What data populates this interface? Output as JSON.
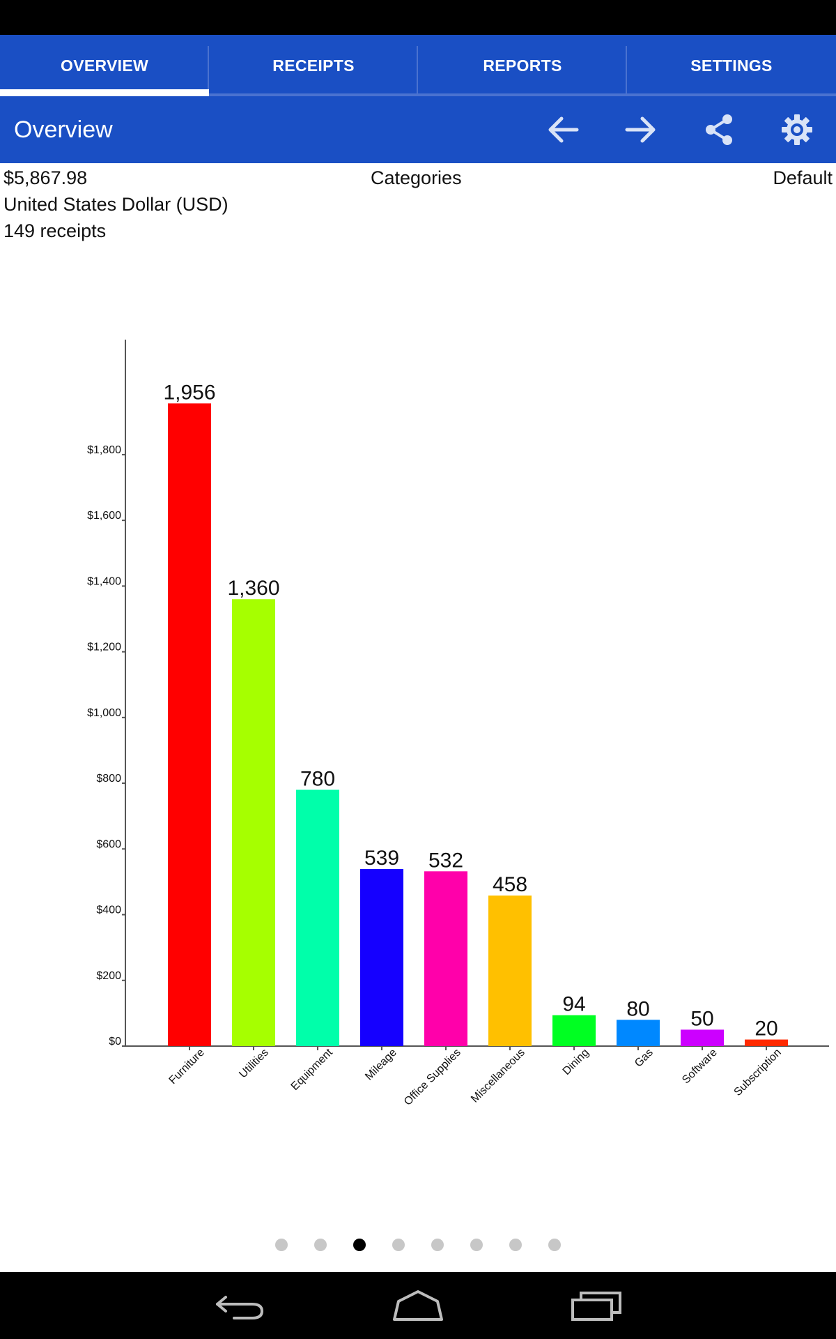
{
  "tabs": [
    {
      "label": "OVERVIEW",
      "active": true
    },
    {
      "label": "RECEIPTS",
      "active": false
    },
    {
      "label": "REPORTS",
      "active": false
    },
    {
      "label": "SETTINGS",
      "active": false
    }
  ],
  "action_bar": {
    "title": "Overview",
    "icons": [
      "arrow-left-icon",
      "arrow-right-icon",
      "share-icon",
      "gear-icon"
    ]
  },
  "summary": {
    "total": "$5,867.98",
    "currency": "United States Dollar (USD)",
    "receipt_count": "149 receipts",
    "grouping": "Categories",
    "profile": "Default"
  },
  "pager": {
    "count": 8,
    "active_index": 2
  },
  "nav_bar": {
    "icons": [
      "back-icon",
      "home-icon",
      "recents-icon"
    ]
  },
  "colors": {
    "app_bar": "#1a4fc4",
    "bars": [
      "#ff0000",
      "#a6ff00",
      "#00ffaa",
      "#1500ff",
      "#ff00aa",
      "#ffc000",
      "#00ff22",
      "#0088ff",
      "#cc00ff",
      "#ff2a00"
    ]
  },
  "chart_data": {
    "type": "bar",
    "categories": [
      "Furniture",
      "Utilities",
      "Equipment",
      "Mileage",
      "Office Supplies",
      "Miscellaneous",
      "Dining",
      "Gas",
      "Software",
      "Subscription"
    ],
    "values": [
      1956,
      1360,
      780,
      539,
      532,
      458,
      94,
      80,
      50,
      20
    ],
    "value_labels": [
      "1,956",
      "1,360",
      "780",
      "539",
      "532",
      "458",
      "94",
      "80",
      "50",
      "20"
    ],
    "yticks": [
      0,
      200,
      400,
      600,
      800,
      1000,
      1200,
      1400,
      1600,
      1800
    ],
    "ytick_labels": [
      "$0",
      "$200",
      "$400",
      "$600",
      "$800",
      "$1,000",
      "$1,200",
      "$1,400",
      "$1,600",
      "$1,800"
    ],
    "ylim": [
      0,
      2150
    ],
    "grid": false,
    "legend": "none"
  }
}
